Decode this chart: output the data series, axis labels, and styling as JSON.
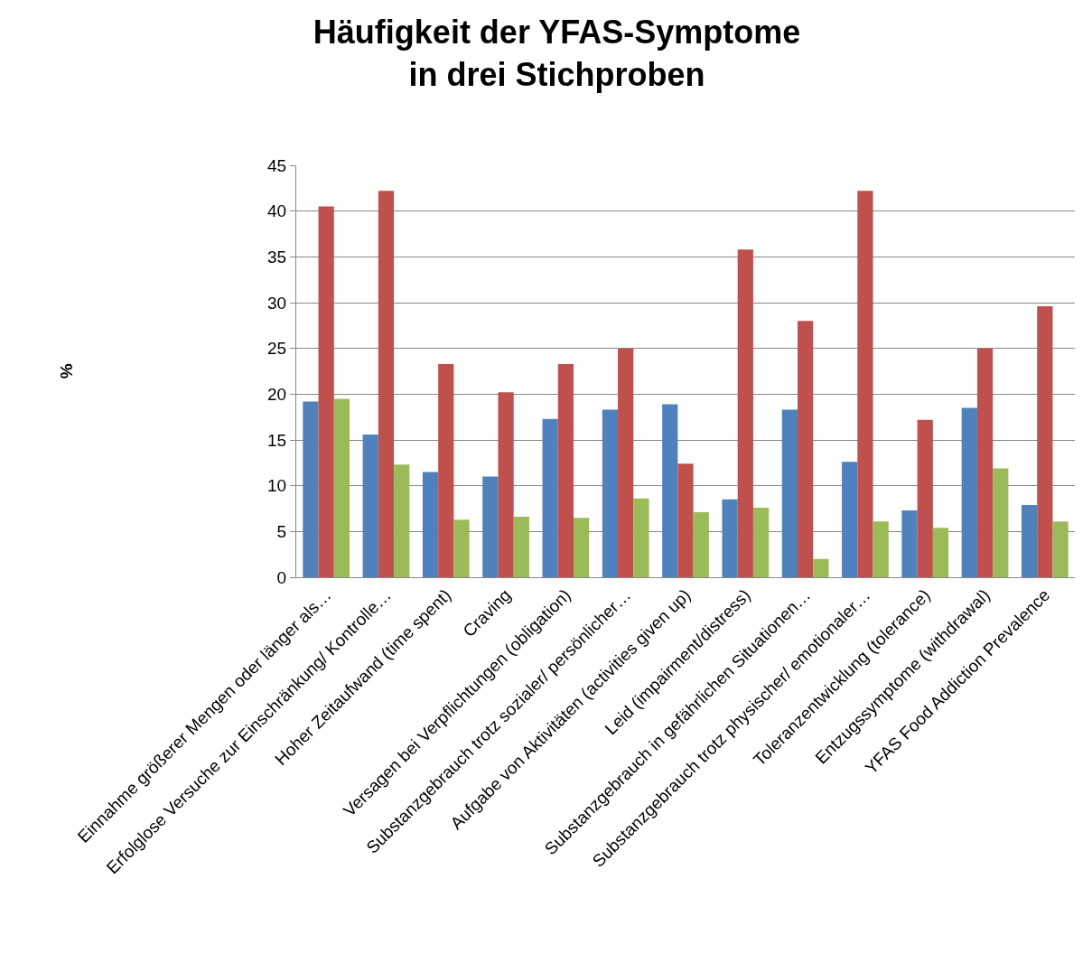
{
  "chart_data": {
    "type": "bar",
    "title": "Häufigkeit der YFAS-Symptome\nin drei Stichproben",
    "ylabel": "%",
    "categories": [
      "Einnahme größerer Mengen oder länger als…",
      "Erfolglose Versuche zur Einschränkung/ Kontrolle…",
      "Hoher Zeitaufwand (time spent)",
      "Craving",
      "Versagen bei Verpflichtungen (obligation)",
      "Substanzgebrauch trotz sozialer/ persönlicher…",
      "Aufgabe von Aktivitäten (activities given up)",
      "Leid (impairment/distress)",
      "Substanzgebrauch in gefährlichen Situationen…",
      "Substanzgebrauch trotz physischer/ emotionaler…",
      "Toleranzentwicklung (tolerance)",
      "Entzugssymptome (withdrawal)",
      "YFAS Food Addiction Prevalence"
    ],
    "series": [
      {
        "color": "#4f81bd",
        "values": [
          19.2,
          15.6,
          11.5,
          11.0,
          17.3,
          18.3,
          18.9,
          8.5,
          18.3,
          12.6,
          7.3,
          18.5,
          7.9
        ]
      },
      {
        "color": "#c0504d",
        "values": [
          40.5,
          42.2,
          23.3,
          20.2,
          23.3,
          25.0,
          12.4,
          35.8,
          28.0,
          42.2,
          17.2,
          25.0,
          29.6
        ]
      },
      {
        "color": "#9bbb59",
        "values": [
          19.5,
          12.3,
          6.3,
          6.6,
          6.5,
          8.6,
          7.1,
          7.6,
          2.0,
          6.1,
          5.4,
          11.9,
          6.1
        ]
      }
    ],
    "ylim": [
      0,
      45
    ],
    "yticks": [
      0,
      5,
      10,
      15,
      20,
      25,
      30,
      35,
      40,
      45
    ],
    "grid": "y"
  }
}
